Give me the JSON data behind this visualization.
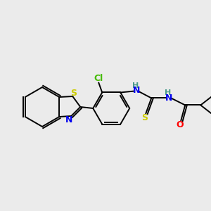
{
  "background_color": "#ebebeb",
  "atom_colors": {
    "C": "#000000",
    "H": "#4a9a8a",
    "N": "#0000ee",
    "O": "#ff0000",
    "S_thio": "#cccc00",
    "S_benz": "#cccc00",
    "Cl": "#44bb00"
  },
  "bond_lw": 1.4,
  "font_size_atom": 9,
  "figsize": [
    3.0,
    3.0
  ],
  "dpi": 100
}
